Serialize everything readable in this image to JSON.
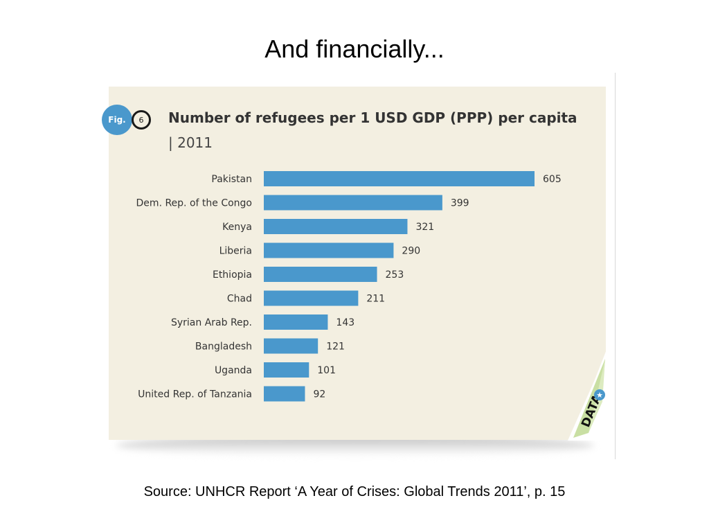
{
  "slide": {
    "title": "And financially...",
    "source": "Source: UNHCR Report ‘A Year of Crises: Global Trends 2011’, p. 15"
  },
  "figure": {
    "badge_label": "Fig.",
    "badge_number": "6",
    "corner_label": "DATA"
  },
  "colors": {
    "bar": "#4a98cc",
    "card": "#f3efe1",
    "text": "#333333"
  },
  "chart_data": {
    "type": "bar",
    "orientation": "horizontal",
    "title": "Number of refugees per 1 USD GDP (PPP) per capita",
    "subtitle": "| 2011",
    "xlabel": "",
    "ylabel": "",
    "xlim": [
      0,
      605
    ],
    "grid": false,
    "categories": [
      "Pakistan",
      "Dem. Rep. of the Congo",
      "Kenya",
      "Liberia",
      "Ethiopia",
      "Chad",
      "Syrian Arab Rep.",
      "Bangladesh",
      "Uganda",
      "United Rep. of Tanzania"
    ],
    "values": [
      605,
      399,
      321,
      290,
      253,
      211,
      143,
      121,
      101,
      92
    ]
  }
}
